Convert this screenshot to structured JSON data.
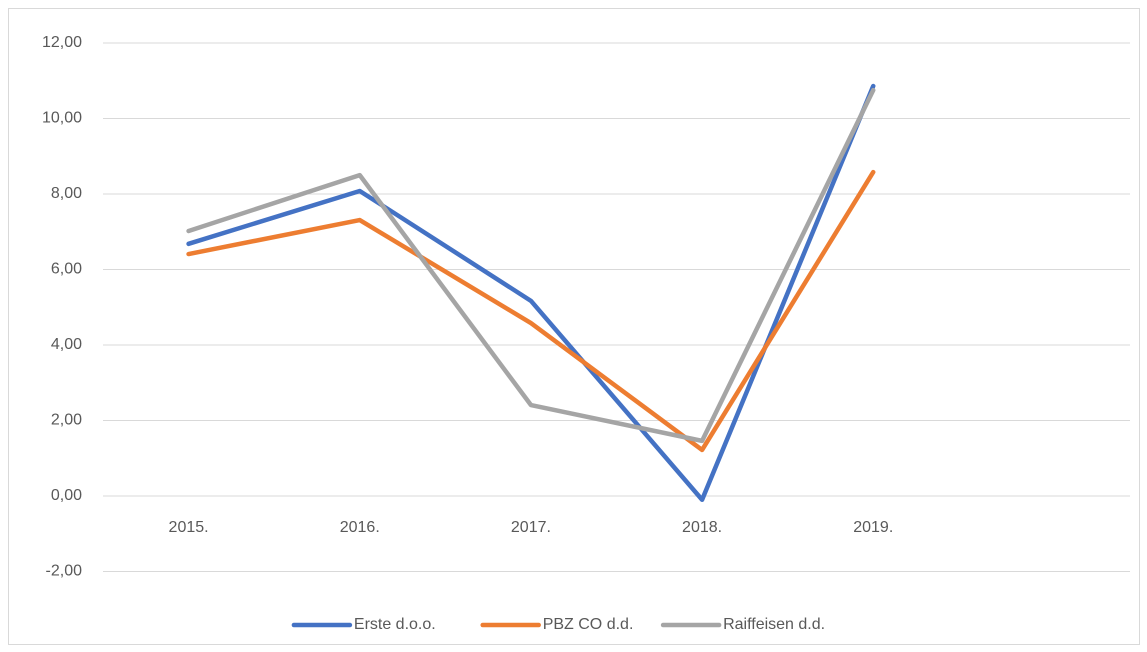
{
  "chart_data": {
    "type": "line",
    "categories": [
      "2015.",
      "2016.",
      "2017.",
      "2018.",
      "2019.",
      null
    ],
    "series": [
      {
        "name": "Erste d.o.o.",
        "color": "#4472c4",
        "values": [
          6.68,
          8.08,
          5.17,
          -0.1,
          10.86,
          null
        ]
      },
      {
        "name": "PBZ CO d.d.",
        "color": "#ed7d31",
        "values": [
          6.41,
          7.31,
          4.58,
          1.22,
          8.58,
          null
        ]
      },
      {
        "name": "Raiffeisen d.d.",
        "color": "#a5a5a5",
        "values": [
          7.02,
          8.5,
          2.41,
          1.46,
          10.75,
          null
        ]
      }
    ],
    "ylim": [
      -2,
      12
    ],
    "yticks": [
      {
        "value": -2,
        "label": "-2,00"
      },
      {
        "value": 0,
        "label": "0,00"
      },
      {
        "value": 2,
        "label": "2,00"
      },
      {
        "value": 4,
        "label": "4,00"
      },
      {
        "value": 6,
        "label": "6,00"
      },
      {
        "value": 8,
        "label": "8,00"
      },
      {
        "value": 10,
        "label": "10,00"
      },
      {
        "value": 12,
        "label": "12,00"
      }
    ],
    "grid": true,
    "legend": "bottom"
  }
}
